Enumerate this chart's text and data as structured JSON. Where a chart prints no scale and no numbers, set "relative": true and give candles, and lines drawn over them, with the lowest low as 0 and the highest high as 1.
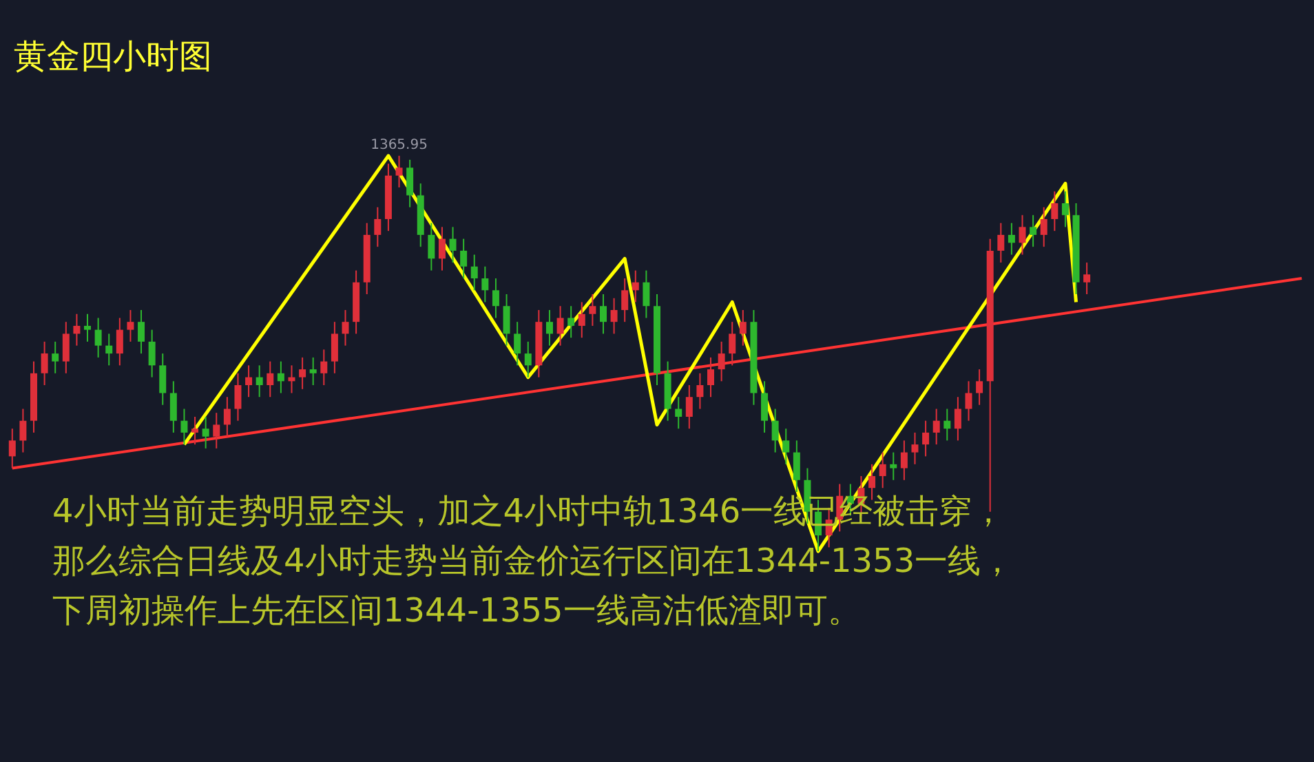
{
  "chart_data": {
    "type": "candlestick",
    "relative": true,
    "title": "黄金四小时图",
    "categories": [
      null,
      null,
      null,
      null,
      null,
      null,
      null,
      null,
      null,
      null,
      null,
      null,
      null,
      null,
      null,
      null,
      null,
      null,
      null,
      null,
      null,
      null,
      null,
      null,
      null,
      null,
      null,
      null,
      null,
      null,
      null,
      null,
      null,
      null,
      null,
      null,
      null,
      null,
      null,
      null,
      null,
      null,
      null,
      null,
      null,
      null,
      null,
      null,
      null,
      null,
      null,
      null,
      null,
      null,
      null,
      null,
      null,
      null,
      null,
      null,
      null,
      null,
      null,
      null,
      null,
      null,
      null,
      null,
      null,
      null,
      null,
      null,
      null,
      null,
      null,
      null,
      null,
      null,
      null,
      null,
      null,
      null,
      null,
      null,
      null,
      null,
      null,
      null,
      null,
      null,
      null,
      null,
      null,
      null,
      null,
      null,
      null,
      null,
      null,
      null,
      null,
      null,
      null,
      null,
      null,
      null,
      null,
      null,
      null,
      null,
      null,
      null,
      null,
      null,
      null,
      null,
      null,
      null,
      null,
      null,
      null
    ],
    "ohlc": [
      [
        0.24,
        0.31,
        0.21,
        0.28
      ],
      [
        0.28,
        0.36,
        0.25,
        0.33
      ],
      [
        0.33,
        0.48,
        0.3,
        0.45
      ],
      [
        0.45,
        0.53,
        0.42,
        0.5
      ],
      [
        0.5,
        0.53,
        0.45,
        0.48
      ],
      [
        0.48,
        0.58,
        0.45,
        0.55
      ],
      [
        0.55,
        0.6,
        0.52,
        0.57
      ],
      [
        0.57,
        0.6,
        0.53,
        0.56
      ],
      [
        0.56,
        0.59,
        0.49,
        0.52
      ],
      [
        0.52,
        0.55,
        0.47,
        0.5
      ],
      [
        0.5,
        0.59,
        0.47,
        0.56
      ],
      [
        0.56,
        0.61,
        0.53,
        0.58
      ],
      [
        0.58,
        0.61,
        0.5,
        0.53
      ],
      [
        0.53,
        0.56,
        0.44,
        0.47
      ],
      [
        0.47,
        0.5,
        0.37,
        0.4
      ],
      [
        0.4,
        0.43,
        0.3,
        0.33
      ],
      [
        0.33,
        0.36,
        0.27,
        0.3
      ],
      [
        0.3,
        0.34,
        0.27,
        0.31
      ],
      [
        0.31,
        0.34,
        0.26,
        0.29
      ],
      [
        0.29,
        0.35,
        0.26,
        0.32
      ],
      [
        0.32,
        0.39,
        0.29,
        0.36
      ],
      [
        0.36,
        0.45,
        0.33,
        0.42
      ],
      [
        0.42,
        0.47,
        0.39,
        0.44
      ],
      [
        0.44,
        0.47,
        0.39,
        0.42
      ],
      [
        0.42,
        0.48,
        0.39,
        0.45
      ],
      [
        0.45,
        0.48,
        0.4,
        0.43
      ],
      [
        0.43,
        0.47,
        0.4,
        0.44
      ],
      [
        0.44,
        0.49,
        0.41,
        0.46
      ],
      [
        0.46,
        0.49,
        0.42,
        0.45
      ],
      [
        0.45,
        0.51,
        0.42,
        0.48
      ],
      [
        0.48,
        0.58,
        0.45,
        0.55
      ],
      [
        0.55,
        0.61,
        0.52,
        0.58
      ],
      [
        0.58,
        0.71,
        0.55,
        0.68
      ],
      [
        0.68,
        0.83,
        0.65,
        0.8
      ],
      [
        0.8,
        0.87,
        0.77,
        0.84
      ],
      [
        0.84,
        0.98,
        0.81,
        0.95
      ],
      [
        0.95,
        1.0,
        0.92,
        0.97
      ],
      [
        0.97,
        0.99,
        0.87,
        0.9
      ],
      [
        0.9,
        0.93,
        0.77,
        0.8
      ],
      [
        0.8,
        0.83,
        0.71,
        0.74
      ],
      [
        0.74,
        0.82,
        0.71,
        0.79
      ],
      [
        0.79,
        0.82,
        0.73,
        0.76
      ],
      [
        0.76,
        0.79,
        0.69,
        0.72
      ],
      [
        0.72,
        0.75,
        0.66,
        0.69
      ],
      [
        0.69,
        0.72,
        0.63,
        0.66
      ],
      [
        0.66,
        0.69,
        0.59,
        0.62
      ],
      [
        0.62,
        0.65,
        0.52,
        0.55
      ],
      [
        0.55,
        0.58,
        0.47,
        0.5
      ],
      [
        0.5,
        0.53,
        0.44,
        0.47
      ],
      [
        0.47,
        0.61,
        0.44,
        0.58
      ],
      [
        0.58,
        0.61,
        0.52,
        0.55
      ],
      [
        0.55,
        0.62,
        0.52,
        0.59
      ],
      [
        0.59,
        0.62,
        0.54,
        0.57
      ],
      [
        0.57,
        0.63,
        0.54,
        0.6
      ],
      [
        0.6,
        0.65,
        0.57,
        0.62
      ],
      [
        0.62,
        0.65,
        0.55,
        0.58
      ],
      [
        0.58,
        0.64,
        0.55,
        0.61
      ],
      [
        0.61,
        0.69,
        0.58,
        0.66
      ],
      [
        0.66,
        0.71,
        0.63,
        0.68
      ],
      [
        0.68,
        0.71,
        0.59,
        0.62
      ],
      [
        0.62,
        0.65,
        0.42,
        0.45
      ],
      [
        0.45,
        0.48,
        0.33,
        0.36
      ],
      [
        0.36,
        0.39,
        0.31,
        0.34
      ],
      [
        0.34,
        0.42,
        0.31,
        0.39
      ],
      [
        0.39,
        0.45,
        0.36,
        0.42
      ],
      [
        0.42,
        0.49,
        0.39,
        0.46
      ],
      [
        0.46,
        0.53,
        0.43,
        0.5
      ],
      [
        0.5,
        0.58,
        0.47,
        0.55
      ],
      [
        0.55,
        0.61,
        0.52,
        0.58
      ],
      [
        0.58,
        0.61,
        0.37,
        0.4
      ],
      [
        0.4,
        0.43,
        0.3,
        0.33
      ],
      [
        0.33,
        0.36,
        0.25,
        0.28
      ],
      [
        0.28,
        0.31,
        0.22,
        0.25
      ],
      [
        0.25,
        0.28,
        0.15,
        0.18
      ],
      [
        0.18,
        0.21,
        0.07,
        0.1
      ],
      [
        0.1,
        0.13,
        0.0,
        0.04
      ],
      [
        0.04,
        0.11,
        0.01,
        0.08
      ],
      [
        0.08,
        0.17,
        0.05,
        0.14
      ],
      [
        0.14,
        0.17,
        0.09,
        0.12
      ],
      [
        0.12,
        0.19,
        0.09,
        0.16
      ],
      [
        0.16,
        0.22,
        0.13,
        0.19
      ],
      [
        0.19,
        0.25,
        0.16,
        0.22
      ],
      [
        0.22,
        0.25,
        0.18,
        0.21
      ],
      [
        0.21,
        0.28,
        0.18,
        0.25
      ],
      [
        0.25,
        0.3,
        0.22,
        0.27
      ],
      [
        0.27,
        0.33,
        0.24,
        0.3
      ],
      [
        0.3,
        0.36,
        0.27,
        0.33
      ],
      [
        0.33,
        0.36,
        0.28,
        0.31
      ],
      [
        0.31,
        0.39,
        0.28,
        0.36
      ],
      [
        0.36,
        0.43,
        0.33,
        0.4
      ],
      [
        0.4,
        0.46,
        0.37,
        0.43
      ],
      [
        0.43,
        0.79,
        0.1,
        0.76
      ],
      [
        0.76,
        0.83,
        0.73,
        0.8
      ],
      [
        0.8,
        0.83,
        0.75,
        0.78
      ],
      [
        0.78,
        0.85,
        0.75,
        0.82
      ],
      [
        0.82,
        0.85,
        0.77,
        0.8
      ],
      [
        0.8,
        0.87,
        0.77,
        0.84
      ],
      [
        0.84,
        0.91,
        0.81,
        0.88
      ],
      [
        0.88,
        0.91,
        0.82,
        0.85
      ],
      [
        0.85,
        0.88,
        0.65,
        0.68
      ],
      [
        0.68,
        0.73,
        0.65,
        0.7
      ],
      null,
      null,
      null,
      null,
      null,
      null,
      null,
      null,
      null,
      null,
      null,
      null,
      null,
      null,
      null,
      null,
      null,
      null,
      null,
      null
    ],
    "colors": [
      "#e0303a",
      "#e0303a",
      "#e0303a",
      "#e0303a",
      "#2eb82e",
      "#e0303a",
      "#e0303a",
      "#2eb82e",
      "#2eb82e",
      "#2eb82e",
      "#e0303a",
      "#e0303a",
      "#2eb82e",
      "#2eb82e",
      "#2eb82e",
      "#2eb82e",
      "#2eb82e",
      "#e0303a",
      "#2eb82e",
      "#e0303a",
      "#e0303a",
      "#e0303a",
      "#e0303a",
      "#2eb82e",
      "#e0303a",
      "#2eb82e",
      "#e0303a",
      "#e0303a",
      "#2eb82e",
      "#e0303a",
      "#e0303a",
      "#e0303a",
      "#e0303a",
      "#e0303a",
      "#e0303a",
      "#e0303a",
      "#e0303a",
      "#2eb82e",
      "#2eb82e",
      "#2eb82e",
      "#e0303a",
      "#2eb82e",
      "#2eb82e",
      "#2eb82e",
      "#2eb82e",
      "#2eb82e",
      "#2eb82e",
      "#2eb82e",
      "#2eb82e",
      "#e0303a",
      "#2eb82e",
      "#e0303a",
      "#2eb82e",
      "#e0303a",
      "#e0303a",
      "#2eb82e",
      "#e0303a",
      "#e0303a",
      "#e0303a",
      "#2eb82e",
      "#2eb82e",
      "#2eb82e",
      "#2eb82e",
      "#e0303a",
      "#e0303a",
      "#e0303a",
      "#e0303a",
      "#e0303a",
      "#e0303a",
      "#2eb82e",
      "#2eb82e",
      "#2eb82e",
      "#2eb82e",
      "#2eb82e",
      "#2eb82e",
      "#2eb82e",
      "#e0303a",
      "#e0303a",
      "#2eb82e",
      "#e0303a",
      "#e0303a",
      "#e0303a",
      "#2eb82e",
      "#e0303a",
      "#e0303a",
      "#e0303a",
      "#e0303a",
      "#2eb82e",
      "#e0303a",
      "#e0303a",
      "#e0303a",
      "#e0303a",
      "#e0303a",
      "#2eb82e",
      "#e0303a",
      "#2eb82e",
      "#e0303a",
      "#e0303a",
      "#2eb82e",
      "#2eb82e",
      "#e0303a",
      null,
      null,
      null,
      null,
      null,
      null,
      null,
      null,
      null,
      null,
      null,
      null,
      null,
      null,
      null,
      null,
      null,
      null,
      null,
      null
    ],
    "series": [
      {
        "type": "line",
        "color": "#ff3333",
        "values": [
          0.21,
          null,
          null,
          null,
          null,
          null,
          null,
          null,
          null,
          null,
          null,
          null,
          null,
          null,
          null,
          null,
          null,
          null,
          null,
          null,
          null,
          null,
          null,
          null,
          null,
          null,
          null,
          null,
          null,
          null,
          null,
          null,
          null,
          null,
          null,
          null,
          null,
          null,
          null,
          null,
          null,
          null,
          null,
          null,
          null,
          null,
          null,
          null,
          null,
          null,
          null,
          null,
          null,
          null,
          null,
          null,
          null,
          null,
          null,
          null,
          null,
          null,
          null,
          null,
          null,
          null,
          null,
          null,
          null,
          null,
          null,
          null,
          null,
          null,
          null,
          null,
          null,
          null,
          null,
          null,
          null,
          null,
          null,
          null,
          null,
          null,
          null,
          null,
          null,
          null,
          null,
          null,
          null,
          null,
          null,
          null,
          null,
          null,
          null,
          null,
          null,
          null,
          null,
          null,
          null,
          null,
          null,
          null,
          null,
          null,
          null,
          null,
          null,
          null,
          null,
          null,
          null,
          null,
          null,
          null,
          0.69
        ]
      },
      {
        "type": "line",
        "color": "#ffff00",
        "values": [
          null,
          null,
          null,
          null,
          null,
          null,
          null,
          null,
          null,
          null,
          null,
          null,
          null,
          null,
          null,
          null,
          0.27,
          null,
          null,
          null,
          null,
          null,
          null,
          null,
          null,
          null,
          null,
          null,
          null,
          null,
          null,
          null,
          null,
          null,
          null,
          1.0,
          null,
          null,
          null,
          null,
          null,
          null,
          null,
          null,
          null,
          null,
          null,
          null,
          0.44,
          null,
          null,
          null,
          null,
          null,
          null,
          null,
          null,
          0.74,
          null,
          null,
          0.32,
          null,
          null,
          null,
          null,
          null,
          null,
          0.63,
          null,
          null,
          null,
          null,
          null,
          null,
          null,
          0.0,
          null,
          null,
          null,
          null,
          null,
          null,
          null,
          null,
          null,
          null,
          null,
          null,
          null,
          null,
          null,
          null,
          null,
          null,
          null,
          null,
          null,
          null,
          0.93,
          0.63,
          null,
          null,
          null,
          null,
          null,
          null,
          null,
          null,
          null,
          null,
          null,
          null,
          null,
          null,
          null,
          null,
          null,
          null,
          null,
          null,
          null
        ]
      }
    ],
    "annotations": [
      {
        "text": "1365.95",
        "y": 1.0
      },
      "4小时当前走势明显空头，加之4小时中轨1346一线已经被击穿，",
      "那么综合日线及4小时走势当前金价运行区间在1344-1353一线，",
      "下周初操作上先在区间1344-1355一线高沽低渣即可。"
    ]
  }
}
